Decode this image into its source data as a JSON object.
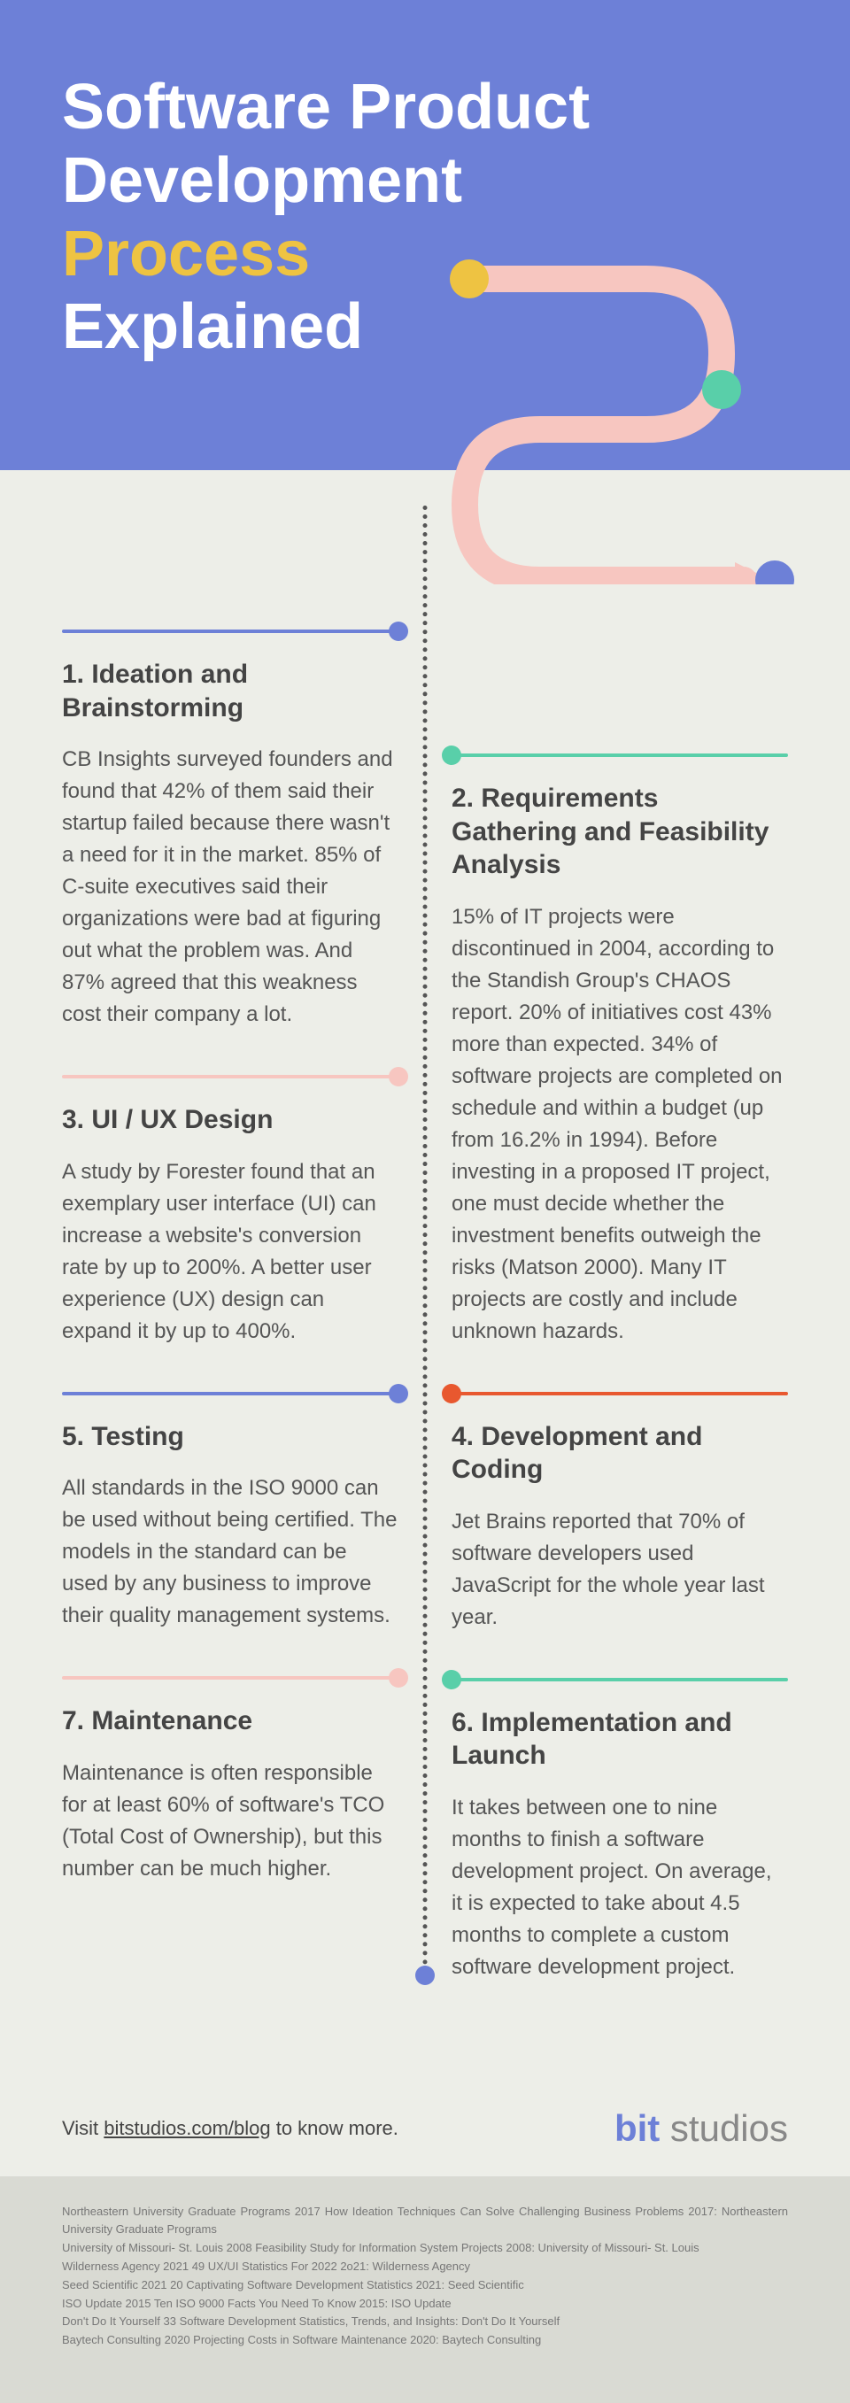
{
  "header": {
    "line1": "Software Product",
    "line2": "Development",
    "line3_accent": "Process",
    "line4": "Explained"
  },
  "colors": {
    "header_bg": "#6d80d7",
    "accent_yellow": "#eec342",
    "body_bg": "#edeee8",
    "blue": "#6d80d7",
    "teal": "#59cfa9",
    "pink": "#f7c6c0",
    "orange": "#e8582f",
    "text_dark": "#444444",
    "text_body": "#555555",
    "refs_bg": "#d9dad3"
  },
  "swoosh": {
    "path_color": "#f7c6c0",
    "path_width": 30,
    "dot1_color": "#eec342",
    "dot2_color": "#59cfa9",
    "dot3_color": "#6d80d7",
    "dot_radius": 22
  },
  "spine": {
    "dot_top_color": "#6d80d7",
    "dot_bottom_color": "#6d80d7"
  },
  "steps": [
    {
      "column": "left",
      "rule_color": "#6d80d7",
      "dot_color": "#6d80d7",
      "title": "1. Ideation and Brainstorming",
      "body": "CB Insights surveyed founders and found that 42% of them said their startup failed because there wasn't a need for it in the market. 85% of C-suite executives said their organizations were bad at figuring out what the problem was. And 87% agreed that this weakness cost their company a lot."
    },
    {
      "column": "right",
      "rule_color": "#59cfa9",
      "dot_color": "#59cfa9",
      "title": "2. Requirements Gathering and Feasibility Analysis",
      "body": "15% of IT projects were discontinued in 2004, according to the Standish Group's CHAOS report. 20% of initiatives cost 43% more than expected. 34% of software projects are completed on schedule and within a budget (up from 16.2% in 1994). Before investing in a proposed IT project, one must decide whether the investment benefits outweigh the risks (Matson 2000). Many IT projects are costly and include unknown hazards."
    },
    {
      "column": "left",
      "rule_color": "#f7c6c0",
      "dot_color": "#f7c6c0",
      "title": "3. UI / UX Design",
      "body": "A study by Forester found that an exemplary user interface (UI) can increase a website's conversion rate by up to 200%. A better user experience (UX) design can expand it by up to 400%."
    },
    {
      "column": "right",
      "rule_color": "#e8582f",
      "dot_color": "#e8582f",
      "title": "4. Development and Coding",
      "body": "Jet Brains reported that 70% of software developers used JavaScript for the whole year last year."
    },
    {
      "column": "left",
      "rule_color": "#6d80d7",
      "dot_color": "#6d80d7",
      "title": "5. Testing",
      "body": "All standards in the ISO 9000 can be used without being certified. The models in the standard can be used by any business to improve their quality management systems."
    },
    {
      "column": "right",
      "rule_color": "#59cfa9",
      "dot_color": "#59cfa9",
      "title": "6. Implementation and Launch",
      "body": "It takes between one to nine months to finish a software development project. On average, it is expected to take about 4.5 months to complete a custom software development project."
    },
    {
      "column": "left",
      "rule_color": "#f7c6c0",
      "dot_color": "#f7c6c0",
      "title": "7. Maintenance",
      "body": "Maintenance is often responsible for at least 60% of software's TCO (Total Cost of Ownership), but this number can be much higher."
    }
  ],
  "cta": {
    "prefix": "Visit ",
    "link": "bitstudios.com/blog",
    "suffix": " to know more."
  },
  "logo": {
    "part1": "bit",
    "part2": " studios"
  },
  "references": "Northeastern University Graduate Programs 2017 How Ideation Techniques Can Solve Challenging Business Problems 2017: Northeastern University Graduate Programs\nUniversity of Missouri- St. Louis 2008 Feasibility Study for Information System Projects 2008: University of Missouri- St. Louis\nWilderness Agency 2021 49 UX/UI Statistics For 2022 2o21: Wilderness Agency\nSeed Scientific 2021 20 Captivating Software Development Statistics 2021: Seed Scientific\nISO Update 2015 Ten ISO 9000 Facts You Need To Know 2015: ISO Update\nDon't Do It Yourself 33 Software Development Statistics, Trends, and Insights: Don't Do It Yourself\nBaytech Consulting 2020 Projecting Costs in Software Maintenance 2020: Baytech Consulting"
}
